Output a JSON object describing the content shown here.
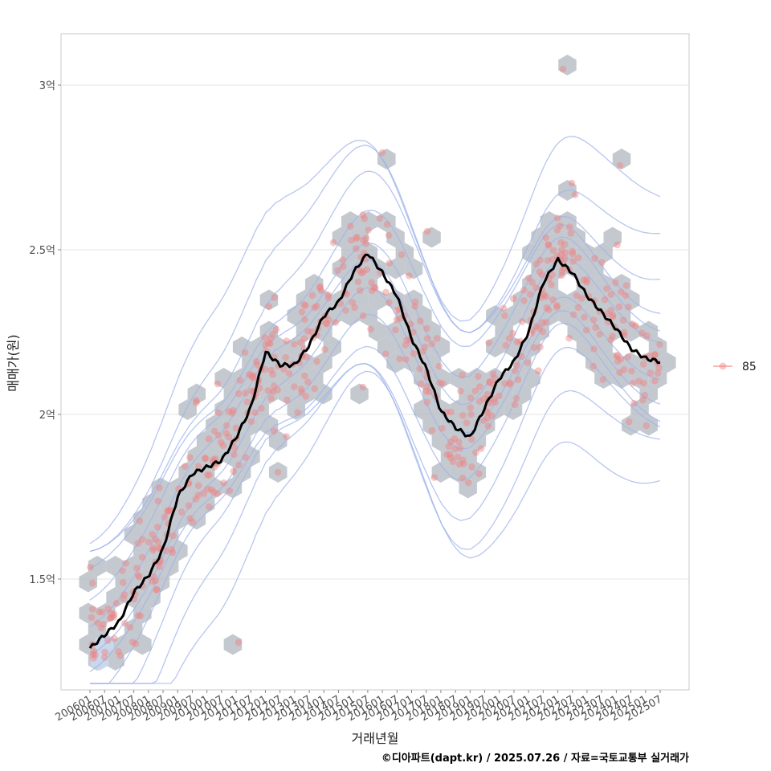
{
  "chart_data": {
    "type": "scatter",
    "xlabel": "거래년월",
    "ylabel": "매매가(원)",
    "ylim": [
      1.18,
      3.15
    ],
    "y_ticks": [
      {
        "value": 1.5,
        "label": "1.5억"
      },
      {
        "value": 2.0,
        "label": "2억"
      },
      {
        "value": 2.5,
        "label": "2.5억"
      },
      {
        "value": 3.0,
        "label": "3억"
      }
    ],
    "x_ticks": [
      "200601",
      "200607",
      "200701",
      "200707",
      "200801",
      "200807",
      "200901",
      "200907",
      "201001",
      "201007",
      "201101",
      "201107",
      "201201",
      "201207",
      "201301",
      "201307",
      "201401",
      "201407",
      "201501",
      "201507",
      "201601",
      "201607",
      "201701",
      "201707",
      "201801",
      "201807",
      "201901",
      "201907",
      "202001",
      "202007",
      "202101",
      "202107",
      "202201",
      "202207",
      "202301",
      "202307",
      "202401",
      "202407",
      "202501",
      "202507"
    ],
    "grid": true,
    "legend": {
      "position": "right",
      "entries": [
        {
          "label": "85",
          "color": "#f08080"
        }
      ]
    },
    "trend_line": {
      "color": "#000000",
      "x": [
        "200601",
        "200607",
        "200701",
        "200707",
        "200801",
        "200807",
        "200901",
        "200907",
        "201001",
        "201007",
        "201101",
        "201107",
        "201201",
        "201207",
        "201301",
        "201307",
        "201401",
        "201407",
        "201501",
        "201507",
        "201601",
        "201607",
        "201701",
        "201707",
        "201801",
        "201807",
        "201901",
        "201907",
        "202001",
        "202007",
        "202101",
        "202107",
        "202201",
        "202207",
        "202301",
        "202307",
        "202401",
        "202407",
        "202501",
        "202507"
      ],
      "y": [
        1.29,
        1.33,
        1.37,
        1.46,
        1.51,
        1.59,
        1.75,
        1.82,
        1.84,
        1.86,
        1.93,
        2.02,
        2.19,
        2.15,
        2.15,
        2.21,
        2.3,
        2.34,
        2.43,
        2.49,
        2.43,
        2.36,
        2.23,
        2.14,
        2.01,
        1.96,
        1.93,
        2.02,
        2.11,
        2.16,
        2.25,
        2.4,
        2.47,
        2.43,
        2.36,
        2.31,
        2.26,
        2.2,
        2.17,
        2.16
      ]
    },
    "density_contours": {
      "color": "#9fb3ea",
      "levels": 11
    },
    "hexbin": {
      "color": "#b4bac2"
    }
  },
  "caption": "©디아파트(dapt.kr) / 2025.07.26 / 자료=국토교통부 실거래가"
}
